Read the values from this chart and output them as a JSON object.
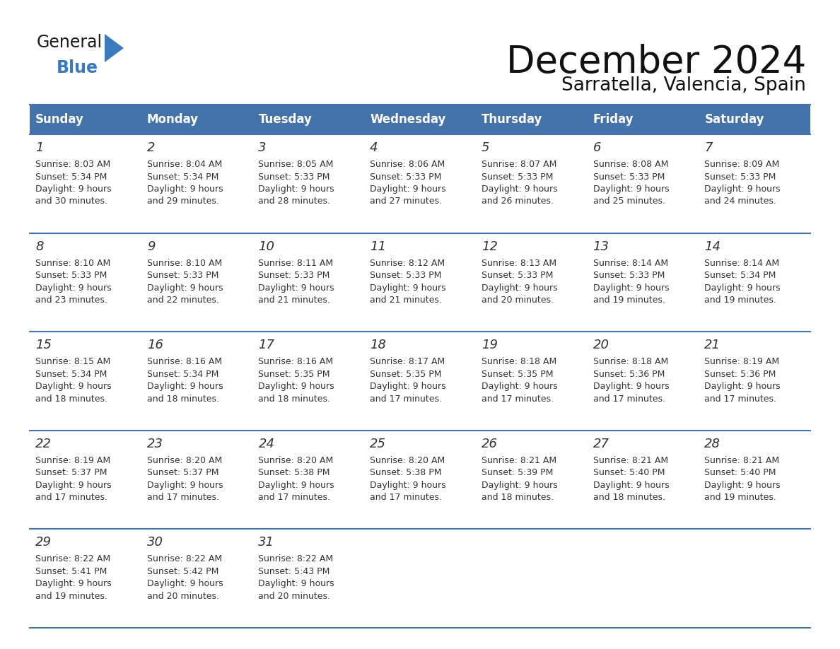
{
  "title": "December 2024",
  "subtitle": "Sarratella, Valencia, Spain",
  "header_color": "#4472aa",
  "header_text_color": "#ffffff",
  "cell_bg_color": "#ffffff",
  "border_color": "#4472aa",
  "text_color": "#333333",
  "day_headers": [
    "Sunday",
    "Monday",
    "Tuesday",
    "Wednesday",
    "Thursday",
    "Friday",
    "Saturday"
  ],
  "weeks": [
    [
      {
        "day": "1",
        "sunrise": "8:03 AM",
        "sunset": "5:34 PM",
        "dl1": "Daylight: 9 hours",
        "dl2": "and 30 minutes."
      },
      {
        "day": "2",
        "sunrise": "8:04 AM",
        "sunset": "5:34 PM",
        "dl1": "Daylight: 9 hours",
        "dl2": "and 29 minutes."
      },
      {
        "day": "3",
        "sunrise": "8:05 AM",
        "sunset": "5:33 PM",
        "dl1": "Daylight: 9 hours",
        "dl2": "and 28 minutes."
      },
      {
        "day": "4",
        "sunrise": "8:06 AM",
        "sunset": "5:33 PM",
        "dl1": "Daylight: 9 hours",
        "dl2": "and 27 minutes."
      },
      {
        "day": "5",
        "sunrise": "8:07 AM",
        "sunset": "5:33 PM",
        "dl1": "Daylight: 9 hours",
        "dl2": "and 26 minutes."
      },
      {
        "day": "6",
        "sunrise": "8:08 AM",
        "sunset": "5:33 PM",
        "dl1": "Daylight: 9 hours",
        "dl2": "and 25 minutes."
      },
      {
        "day": "7",
        "sunrise": "8:09 AM",
        "sunset": "5:33 PM",
        "dl1": "Daylight: 9 hours",
        "dl2": "and 24 minutes."
      }
    ],
    [
      {
        "day": "8",
        "sunrise": "8:10 AM",
        "sunset": "5:33 PM",
        "dl1": "Daylight: 9 hours",
        "dl2": "and 23 minutes."
      },
      {
        "day": "9",
        "sunrise": "8:10 AM",
        "sunset": "5:33 PM",
        "dl1": "Daylight: 9 hours",
        "dl2": "and 22 minutes."
      },
      {
        "day": "10",
        "sunrise": "8:11 AM",
        "sunset": "5:33 PM",
        "dl1": "Daylight: 9 hours",
        "dl2": "and 21 minutes."
      },
      {
        "day": "11",
        "sunrise": "8:12 AM",
        "sunset": "5:33 PM",
        "dl1": "Daylight: 9 hours",
        "dl2": "and 21 minutes."
      },
      {
        "day": "12",
        "sunrise": "8:13 AM",
        "sunset": "5:33 PM",
        "dl1": "Daylight: 9 hours",
        "dl2": "and 20 minutes."
      },
      {
        "day": "13",
        "sunrise": "8:14 AM",
        "sunset": "5:33 PM",
        "dl1": "Daylight: 9 hours",
        "dl2": "and 19 minutes."
      },
      {
        "day": "14",
        "sunrise": "8:14 AM",
        "sunset": "5:34 PM",
        "dl1": "Daylight: 9 hours",
        "dl2": "and 19 minutes."
      }
    ],
    [
      {
        "day": "15",
        "sunrise": "8:15 AM",
        "sunset": "5:34 PM",
        "dl1": "Daylight: 9 hours",
        "dl2": "and 18 minutes."
      },
      {
        "day": "16",
        "sunrise": "8:16 AM",
        "sunset": "5:34 PM",
        "dl1": "Daylight: 9 hours",
        "dl2": "and 18 minutes."
      },
      {
        "day": "17",
        "sunrise": "8:16 AM",
        "sunset": "5:35 PM",
        "dl1": "Daylight: 9 hours",
        "dl2": "and 18 minutes."
      },
      {
        "day": "18",
        "sunrise": "8:17 AM",
        "sunset": "5:35 PM",
        "dl1": "Daylight: 9 hours",
        "dl2": "and 17 minutes."
      },
      {
        "day": "19",
        "sunrise": "8:18 AM",
        "sunset": "5:35 PM",
        "dl1": "Daylight: 9 hours",
        "dl2": "and 17 minutes."
      },
      {
        "day": "20",
        "sunrise": "8:18 AM",
        "sunset": "5:36 PM",
        "dl1": "Daylight: 9 hours",
        "dl2": "and 17 minutes."
      },
      {
        "day": "21",
        "sunrise": "8:19 AM",
        "sunset": "5:36 PM",
        "dl1": "Daylight: 9 hours",
        "dl2": "and 17 minutes."
      }
    ],
    [
      {
        "day": "22",
        "sunrise": "8:19 AM",
        "sunset": "5:37 PM",
        "dl1": "Daylight: 9 hours",
        "dl2": "and 17 minutes."
      },
      {
        "day": "23",
        "sunrise": "8:20 AM",
        "sunset": "5:37 PM",
        "dl1": "Daylight: 9 hours",
        "dl2": "and 17 minutes."
      },
      {
        "day": "24",
        "sunrise": "8:20 AM",
        "sunset": "5:38 PM",
        "dl1": "Daylight: 9 hours",
        "dl2": "and 17 minutes."
      },
      {
        "day": "25",
        "sunrise": "8:20 AM",
        "sunset": "5:38 PM",
        "dl1": "Daylight: 9 hours",
        "dl2": "and 17 minutes."
      },
      {
        "day": "26",
        "sunrise": "8:21 AM",
        "sunset": "5:39 PM",
        "dl1": "Daylight: 9 hours",
        "dl2": "and 18 minutes."
      },
      {
        "day": "27",
        "sunrise": "8:21 AM",
        "sunset": "5:40 PM",
        "dl1": "Daylight: 9 hours",
        "dl2": "and 18 minutes."
      },
      {
        "day": "28",
        "sunrise": "8:21 AM",
        "sunset": "5:40 PM",
        "dl1": "Daylight: 9 hours",
        "dl2": "and 19 minutes."
      }
    ],
    [
      {
        "day": "29",
        "sunrise": "8:22 AM",
        "sunset": "5:41 PM",
        "dl1": "Daylight: 9 hours",
        "dl2": "and 19 minutes."
      },
      {
        "day": "30",
        "sunrise": "8:22 AM",
        "sunset": "5:42 PM",
        "dl1": "Daylight: 9 hours",
        "dl2": "and 20 minutes."
      },
      {
        "day": "31",
        "sunrise": "8:22 AM",
        "sunset": "5:43 PM",
        "dl1": "Daylight: 9 hours",
        "dl2": "and 20 minutes."
      },
      null,
      null,
      null,
      null
    ]
  ],
  "logo_general_color": "#1a1a1a",
  "logo_blue_color": "#3a7abf",
  "logo_triangle_color": "#3a7abf"
}
